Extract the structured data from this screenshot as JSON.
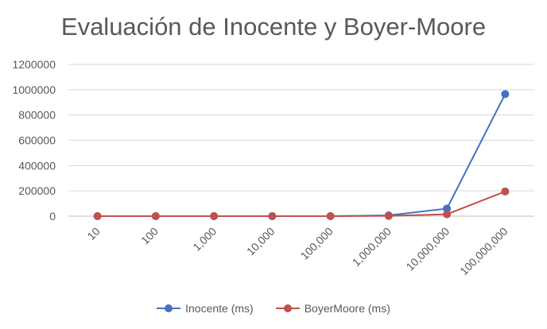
{
  "chart_data": {
    "type": "line",
    "title": "Evaluación de Inocente y Boyer-Moore",
    "categories": [
      "10",
      "100",
      "1,000",
      "10,000",
      "100,000",
      "1,000,000",
      "10,000,000",
      "100,000,000"
    ],
    "y_ticks": [
      "0",
      "200000",
      "400000",
      "600000",
      "800000",
      "1000000",
      "1200000"
    ],
    "ylim": [
      0,
      1200000
    ],
    "grid": true,
    "legend_position": "bottom",
    "series": [
      {
        "name": "Inocente (ms)",
        "color": "#4472C4",
        "values": [
          0,
          0,
          0,
          0,
          200,
          6000,
          60000,
          965000
        ]
      },
      {
        "name": "BoyerMoore (ms)",
        "color": "#C0504D",
        "values": [
          0,
          0,
          0,
          0,
          100,
          2000,
          15000,
          195000
        ]
      }
    ]
  }
}
